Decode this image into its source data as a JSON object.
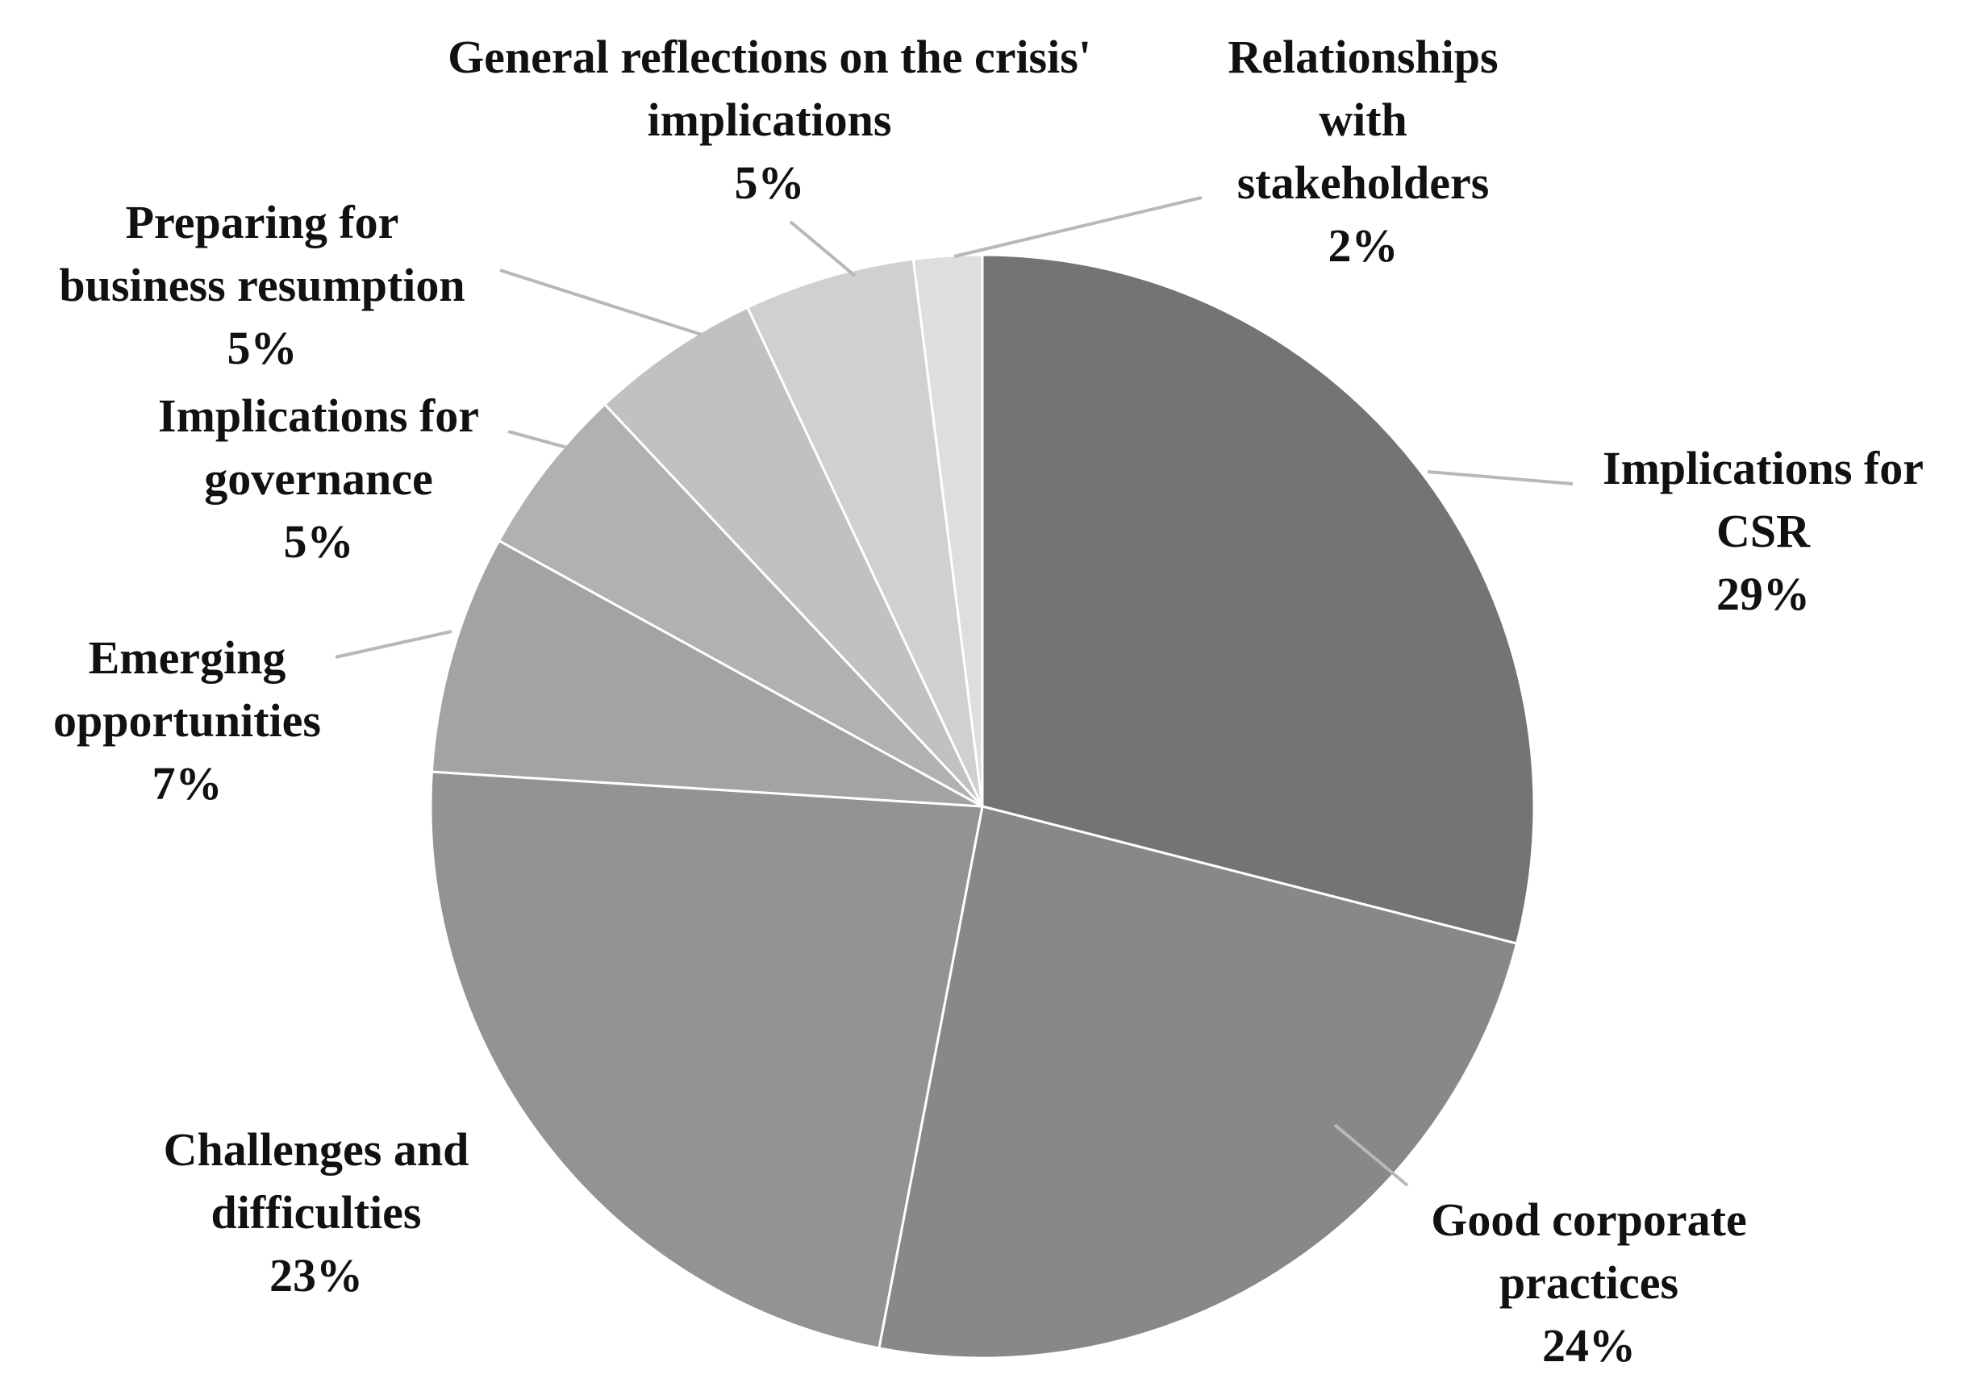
{
  "chart_data": {
    "type": "pie",
    "start_angle_deg": 0,
    "direction": "clockwise",
    "slices": [
      {
        "label_lines": [
          "Implications for",
          "CSR"
        ],
        "value": 29,
        "percent_label": "29%",
        "color": "#747474"
      },
      {
        "label_lines": [
          "Good corporate",
          "practices"
        ],
        "value": 24,
        "percent_label": "24%",
        "color": "#888888"
      },
      {
        "label_lines": [
          "Challenges and",
          "difficulties"
        ],
        "value": 23,
        "percent_label": "23%",
        "color": "#939393"
      },
      {
        "label_lines": [
          "Emerging",
          "opportunities"
        ],
        "value": 7,
        "percent_label": "7%",
        "color": "#a3a3a3"
      },
      {
        "label_lines": [
          "Implications for",
          "governance"
        ],
        "value": 5,
        "percent_label": "5%",
        "color": "#b1b1b1"
      },
      {
        "label_lines": [
          "Preparing for",
          "business resumption"
        ],
        "value": 5,
        "percent_label": "5%",
        "color": "#c1c1c1"
      },
      {
        "label_lines": [
          "General reflections on the crisis'",
          "implications"
        ],
        "value": 5,
        "percent_label": "5%",
        "color": "#d0d0d0"
      },
      {
        "label_lines": [
          "Relationships",
          "with",
          "stakeholders"
        ],
        "value": 2,
        "percent_label": "2%",
        "color": "#dedede"
      }
    ]
  }
}
